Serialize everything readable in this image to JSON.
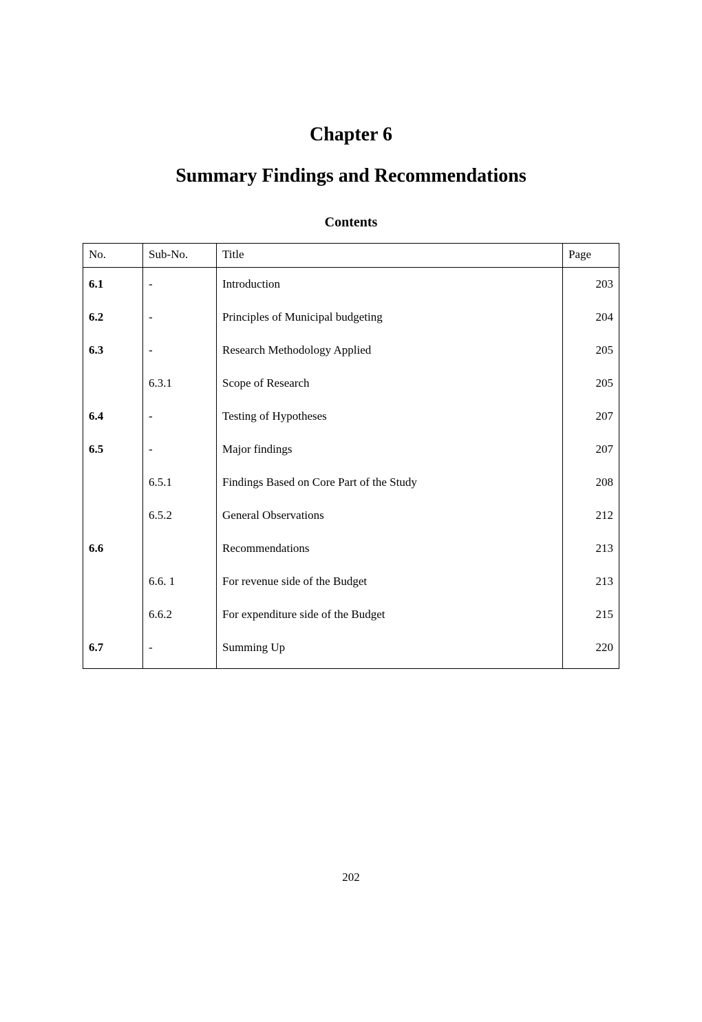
{
  "chapter": "Chapter 6",
  "title": "Summary Findings and Recommendations",
  "contentsLabel": "Contents",
  "headers": {
    "no": "No.",
    "sub": "Sub-No.",
    "title": "Title",
    "page": "Page"
  },
  "rows": [
    {
      "no": "6.1",
      "sub": "-",
      "title": "Introduction",
      "page": "203",
      "noBold": true
    },
    {
      "no": "6.2",
      "sub": "-",
      "title": "Principles of Municipal budgeting",
      "page": "204",
      "noBold": true
    },
    {
      "no": "6.3",
      "sub": "-",
      "title": "Research Methodology Applied",
      "page": "205",
      "noBold": true
    },
    {
      "no": "",
      "sub": "6.3.1",
      "title": "Scope of Research",
      "page": "205",
      "noBold": false
    },
    {
      "no": "6.4",
      "sub": "-",
      "title": "Testing of Hypotheses",
      "page": "207",
      "noBold": true
    },
    {
      "no": "6.5",
      "sub": "-",
      "title": "Major findings",
      "page": "207",
      "noBold": true
    },
    {
      "no": "",
      "sub": "6.5.1",
      "title": "Findings Based on Core Part of the Study",
      "page": "208",
      "noBold": false
    },
    {
      "no": "",
      "sub": "6.5.2",
      "title": "General Observations",
      "page": "212",
      "noBold": false
    },
    {
      "no": "6.6",
      "sub": "",
      "title": "Recommendations",
      "page": "213",
      "noBold": true
    },
    {
      "no": "",
      "sub": "6.6. 1",
      "title": "For revenue side of the Budget",
      "page": "213",
      "noBold": false
    },
    {
      "no": "",
      "sub": "6.6.2",
      "title": "For expenditure side of the Budget",
      "page": "215",
      "noBold": false
    },
    {
      "no": "6.7",
      "sub": "-",
      "title": "Summing Up",
      "page": "220",
      "noBold": true
    }
  ],
  "pageNumber": "202"
}
